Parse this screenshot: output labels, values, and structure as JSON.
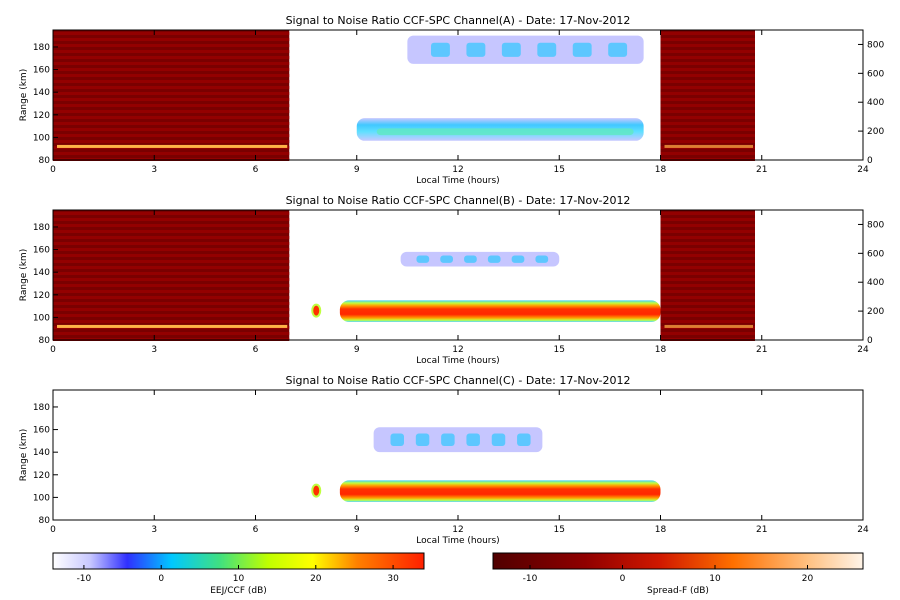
{
  "chart_data": [
    {
      "type": "heatmap",
      "title": "Signal to Noise Ratio CCF-SPC Channel(A) - Date: 17-Nov-2012",
      "xlabel": "Local Time (hours)",
      "ylabel": "Range (km)",
      "xlim": [
        0,
        24
      ],
      "ylim": [
        80,
        195
      ],
      "x_ticks": [
        0,
        3,
        6,
        9,
        12,
        15,
        18,
        21,
        24
      ],
      "y_ticks": [
        80,
        100,
        120,
        140,
        160,
        180
      ],
      "right_axis_ticks": [
        0,
        200,
        400,
        600,
        800
      ],
      "spread_f_blocks": [
        [
          0,
          7
        ],
        [
          18,
          20.8
        ]
      ],
      "echo_bands": [
        {
          "start": 9,
          "end": 17.5,
          "range_low": 97,
          "range_high": 117,
          "snr_db": 5
        },
        {
          "start": 10.5,
          "end": 17.5,
          "range_low": 165,
          "range_high": 190,
          "snr_db": 3
        }
      ]
    },
    {
      "type": "heatmap",
      "title": "Signal to Noise Ratio CCF-SPC Channel(B) - Date: 17-Nov-2012",
      "xlabel": "Local Time (hours)",
      "ylabel": "Range (km)",
      "xlim": [
        0,
        24
      ],
      "ylim": [
        80,
        195
      ],
      "x_ticks": [
        0,
        3,
        6,
        9,
        12,
        15,
        18,
        21,
        24
      ],
      "y_ticks": [
        80,
        100,
        120,
        140,
        160,
        180
      ],
      "right_axis_ticks": [
        0,
        200,
        400,
        600,
        800
      ],
      "spread_f_blocks": [
        [
          0,
          7
        ],
        [
          18,
          20.8
        ]
      ],
      "echo_bands": [
        {
          "start": 8.5,
          "end": 18,
          "range_low": 96,
          "range_high": 115,
          "snr_db": 25
        },
        {
          "start": 10.3,
          "end": 15,
          "range_low": 145,
          "range_high": 158,
          "snr_db": 3
        }
      ]
    },
    {
      "type": "heatmap",
      "title": "Signal to Noise Ratio CCF-SPC Channel(C) - Date: 17-Nov-2012",
      "xlabel": "Local Time (hours)",
      "ylabel": "Range (km)",
      "xlim": [
        0,
        24
      ],
      "ylim": [
        80,
        195
      ],
      "x_ticks": [
        0,
        3,
        6,
        9,
        12,
        15,
        18,
        21,
        24
      ],
      "y_ticks": [
        80,
        100,
        120,
        140,
        160,
        180
      ],
      "echo_bands": [
        {
          "start": 8.5,
          "end": 18,
          "range_low": 96,
          "range_high": 115,
          "snr_db": 25
        },
        {
          "start": 9.5,
          "end": 14.5,
          "range_low": 140,
          "range_high": 162,
          "snr_db": 2
        }
      ]
    }
  ],
  "colorbars": [
    {
      "label": "EEJ/CCF (dB)",
      "ticks": [
        "-10",
        "0",
        "10",
        "20",
        "30"
      ],
      "range": [
        -14,
        34
      ],
      "colormap": "rainbow"
    },
    {
      "label": "Spread-F (dB)",
      "ticks": [
        "-10",
        "0",
        "10",
        "20"
      ],
      "range": [
        -14,
        26
      ],
      "colormap": "heat"
    }
  ],
  "colors": {
    "spread_f_bg": "#7a0000",
    "spread_f_stripe": "#930000",
    "e_layer_trace": "#ffb347",
    "weak_echo": "#8080ff",
    "mid_echo": "#30c8ff",
    "core_echo": "#ff3000"
  }
}
